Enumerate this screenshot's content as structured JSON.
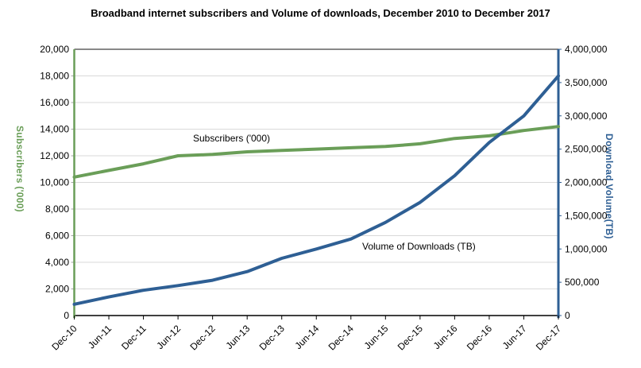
{
  "chart_data": {
    "type": "line",
    "title": "Broadband internet subscribers and Volume of downloads, December 2010 to December 2017",
    "categories": [
      "Dec-10",
      "Jun-11",
      "Dec-11",
      "Jun-12",
      "Dec-12",
      "Jun-13",
      "Dec-13",
      "Jun-14",
      "Dec-14",
      "Jun-15",
      "Dec-15",
      "Jun-16",
      "Dec-16",
      "Jun-17",
      "Dec-17"
    ],
    "series": [
      {
        "name": "Subscribers ('000)",
        "inline_label": "Subscribers ('000)",
        "axis": "left",
        "color": "#6a9e58",
        "values": [
          10400,
          10900,
          11400,
          12000,
          12100,
          12300,
          12400,
          12500,
          12600,
          12700,
          12900,
          13300,
          13500,
          13900,
          14200
        ]
      },
      {
        "name": "Volume of Downloads (TB)",
        "inline_label": "Volume of Downloads (TB)",
        "axis": "right",
        "color": "#2e5f94",
        "values": [
          170000,
          280000,
          380000,
          450000,
          530000,
          660000,
          860000,
          1000000,
          1150000,
          1400000,
          1700000,
          2100000,
          2600000,
          3000000,
          3600000
        ]
      }
    ],
    "left_axis": {
      "title": "Subscribers ('000)",
      "color": "#6a9e58",
      "min": 0,
      "max": 20000,
      "tick_step": 2000,
      "tick_labels": [
        "0",
        "2,000",
        "4,000",
        "6,000",
        "8,000",
        "10,000",
        "12,000",
        "14,000",
        "16,000",
        "18,000",
        "20,000"
      ]
    },
    "right_axis": {
      "title": "Download Volume(TB)",
      "color": "#2e5f94",
      "min": 0,
      "max": 4000000,
      "tick_step": 500000,
      "tick_labels": [
        "0",
        "500,000",
        "1,000,000",
        "1,500,000",
        "2,000,000",
        "2,500,000",
        "3,000,000",
        "3,500,000",
        "4,000,000"
      ]
    },
    "x_axis": {
      "tick_labels": [
        "Dec-10",
        "Jun-11",
        "Dec-11",
        "Jun-12",
        "Dec-12",
        "Jun-13",
        "Dec-13",
        "Jun-14",
        "Dec-14",
        "Jun-15",
        "Dec-15",
        "Jun-16",
        "Dec-16",
        "Jun-17",
        "Dec-17"
      ],
      "label_rotation_deg": -45
    },
    "grid": true,
    "gridline_color": "#d9d9d9",
    "legend": "none-inline-labels"
  }
}
